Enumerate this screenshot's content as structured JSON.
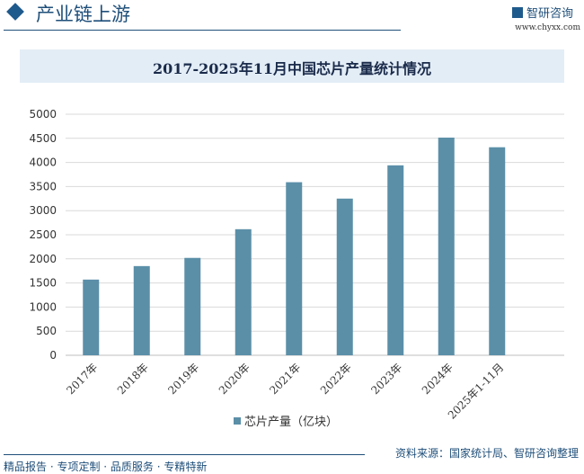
{
  "header": {
    "title": "产业链上游",
    "logo_text": "智研咨询",
    "url": "www.chyxx.com"
  },
  "chart_data": {
    "type": "bar",
    "title": "2017-2025年11月中国芯片产量统计情况",
    "categories": [
      "2017年",
      "2018年",
      "2019年",
      "2020年",
      "2021年",
      "2022年",
      "2023年",
      "2024年",
      "2025年1-11月"
    ],
    "series": [
      {
        "name": "芯片产量（亿块）",
        "values": [
          1570,
          1850,
          2020,
          2615,
          3590,
          3250,
          3940,
          4515,
          4315
        ],
        "color": "#5b8fa8"
      }
    ],
    "yticks": [
      "0",
      "500",
      "1000",
      "1500",
      "2000",
      "2500",
      "3000",
      "3500",
      "4000",
      "4500",
      "5000"
    ],
    "ylim": [
      0,
      5000
    ],
    "grid": true,
    "legend": "bottom"
  },
  "footer": {
    "source": "资料来源：国家统计局、智研咨询整理",
    "slogan": "精品报告 · 专项定制 · 品质服务 · 专精特新"
  }
}
